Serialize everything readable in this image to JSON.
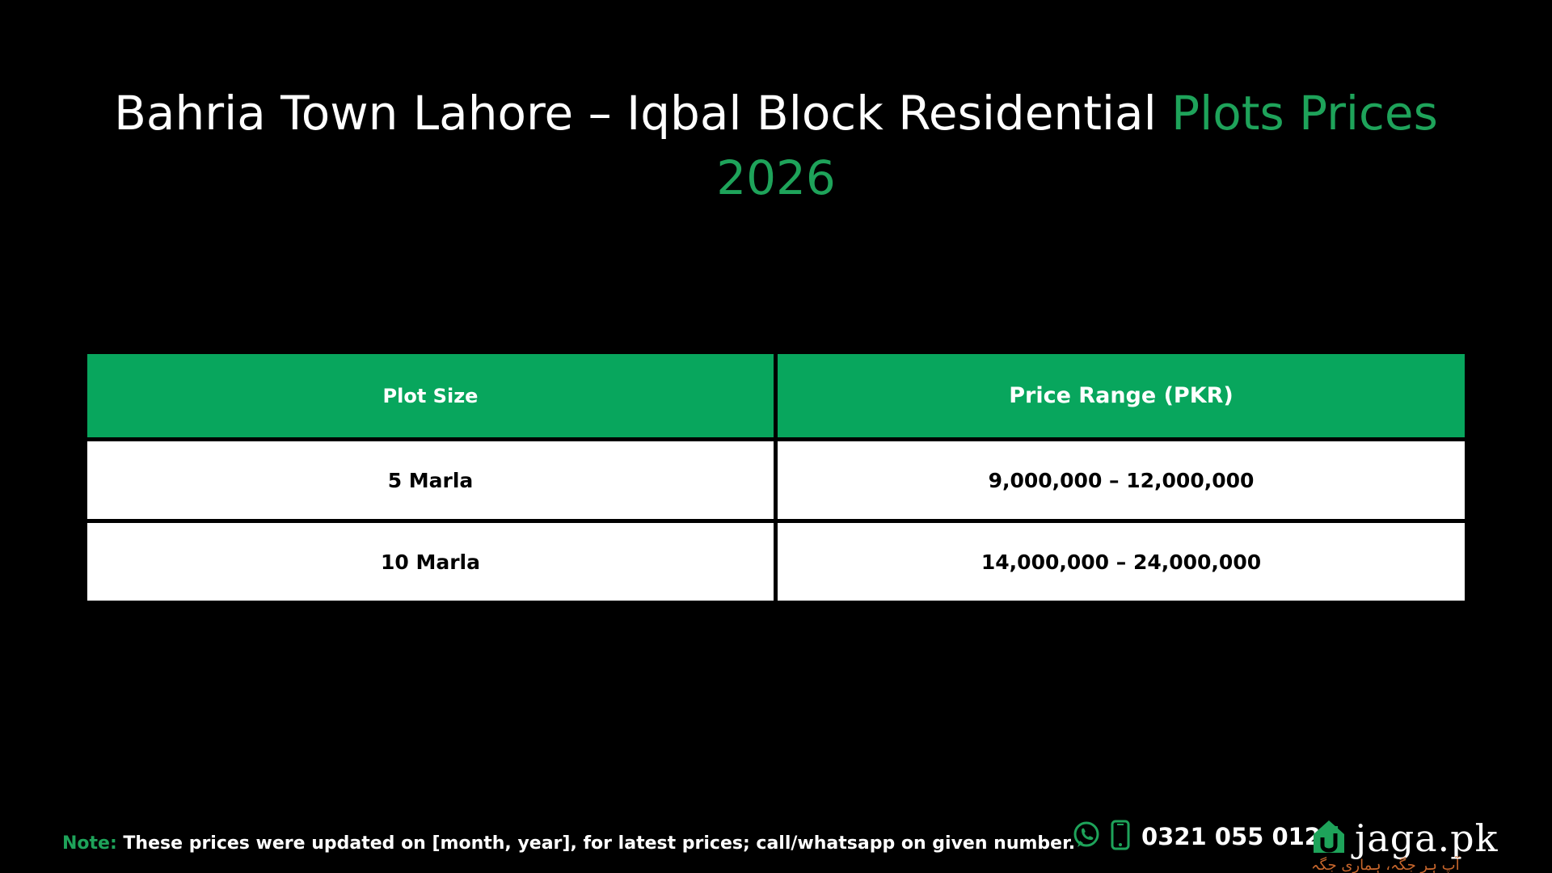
{
  "title": {
    "main": "Bahria Town Lahore – Iqbal Block Residential ",
    "accent": "Plots Prices 2026"
  },
  "table": {
    "headers": [
      "Plot Size",
      "Price Range (PKR)"
    ],
    "rows": [
      [
        "5 Marla",
        "9,000,000 – 12,000,000"
      ],
      [
        "10 Marla",
        "14,000,000 – 24,000,000"
      ]
    ]
  },
  "note": {
    "label": "Note:",
    "text": " These prices were updated on [month, year], for latest prices; call/whatsapp on given number."
  },
  "contact": {
    "phone": "0321 055 0123",
    "icons": [
      "whatsapp-icon",
      "phone-icon"
    ]
  },
  "brand": {
    "name": "jaga.pk",
    "tagline": "آپ ہر جگہ، ہماری جگہ",
    "icon": "house-logo-icon"
  },
  "colors": {
    "background": "#000000",
    "accent": "#1ea35a",
    "header_fill": "#08a65d",
    "tagline": "#c8662c"
  }
}
